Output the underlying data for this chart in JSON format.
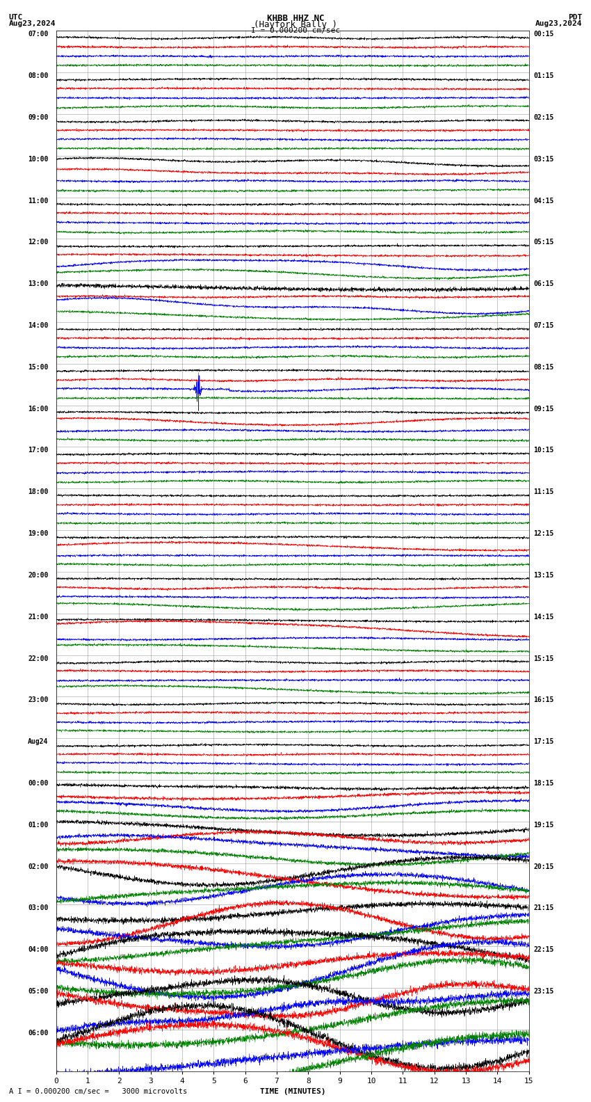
{
  "title_line1": "KHBB HHZ NC",
  "title_line2": "(Hayfork Bally )",
  "scale_text": "I = 0.000200 cm/sec",
  "utc_label": "UTC",
  "utc_date": "Aug23,2024",
  "pdt_label": "PDT",
  "pdt_date": "Aug23,2024",
  "bottom_label": "TIME (MINUTES)",
  "bottom_note": "A I = 0.000200 cm/sec =   3000 microvolts",
  "xlim": [
    0,
    15
  ],
  "xticks": [
    0,
    1,
    2,
    3,
    4,
    5,
    6,
    7,
    8,
    9,
    10,
    11,
    12,
    13,
    14,
    15
  ],
  "left_times": [
    "07:00",
    "08:00",
    "09:00",
    "10:00",
    "11:00",
    "12:00",
    "13:00",
    "14:00",
    "15:00",
    "16:00",
    "17:00",
    "18:00",
    "19:00",
    "20:00",
    "21:00",
    "22:00",
    "23:00",
    "Aug24",
    "00:00",
    "01:00",
    "02:00",
    "03:00",
    "04:00",
    "05:00",
    "06:00"
  ],
  "right_times": [
    "00:15",
    "01:15",
    "02:15",
    "03:15",
    "04:15",
    "05:15",
    "06:15",
    "07:15",
    "08:15",
    "09:15",
    "10:15",
    "11:15",
    "12:15",
    "13:15",
    "14:15",
    "15:15",
    "16:15",
    "17:15",
    "18:15",
    "19:15",
    "20:15",
    "21:15",
    "22:15",
    "23:15"
  ],
  "n_rows": 25,
  "n_channels": 4,
  "colors": [
    "black",
    "red",
    "blue",
    "green"
  ],
  "bg_color": "white",
  "grid_color": "#999999",
  "line_width": 0.35,
  "seed": 42
}
